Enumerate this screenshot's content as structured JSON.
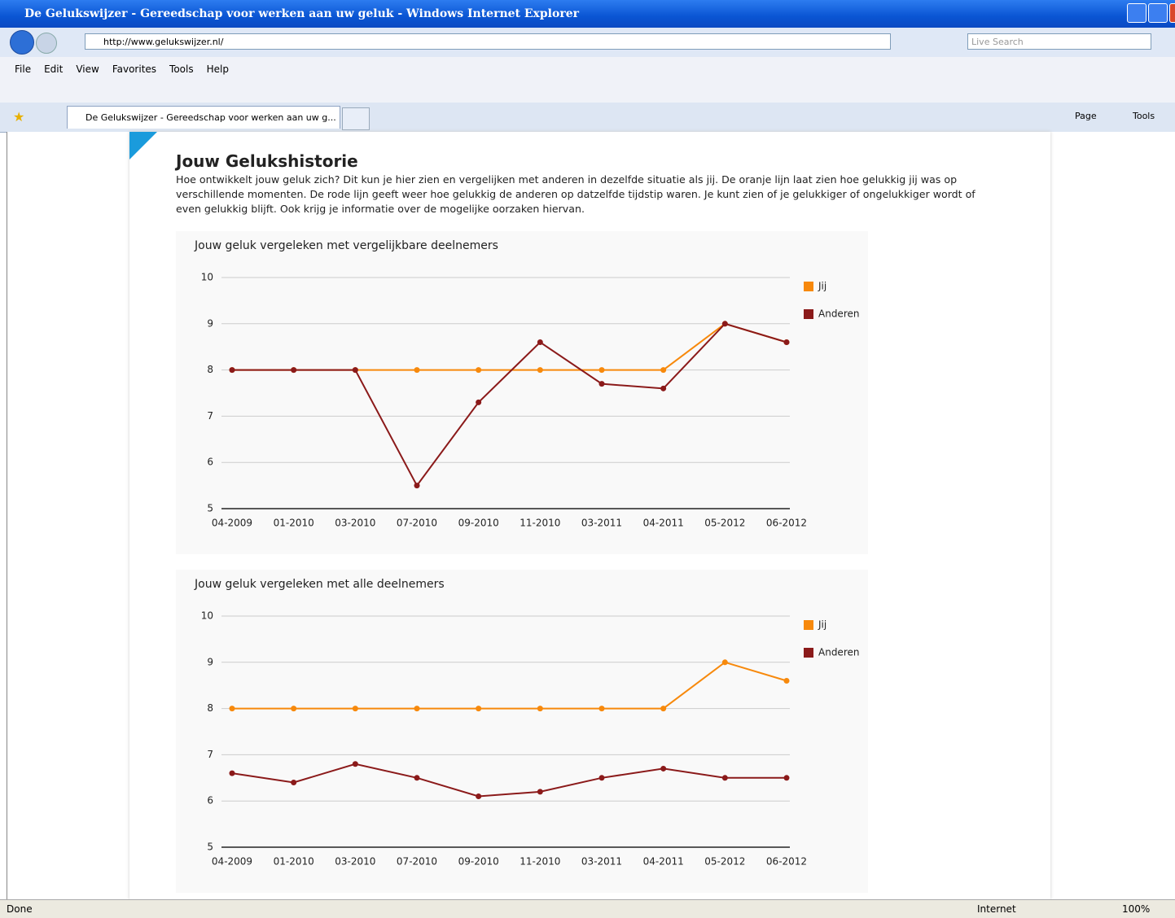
{
  "window": {
    "title": "De Gelukswijzer - Gereedschap voor werken aan uw geluk - Windows Internet Explorer",
    "url": "http://www.gelukswijzer.nl/",
    "search": "Live Search",
    "menu": [
      "File",
      "Edit",
      "View",
      "Favorites",
      "Tools",
      "Help"
    ],
    "tab": "De Gelukswijzer - Gereedschap voor werken aan uw g...",
    "toolbar": [
      "Page",
      "Tools"
    ],
    "status": {
      "text": "Done",
      "zone": "Internet",
      "zoom": "100%"
    }
  },
  "page": {
    "heading": "Jouw Gelukshistorie",
    "intro": "Hoe ontwikkelt jouw geluk zich? Dit kun je hier zien en vergelijken met anderen in dezelfde situatie als jij. De oranje lijn laat zien hoe gelukkig jij was op verschillende momenten. De rode lijn geeft weer hoe gelukkig de anderen op datzelfde tijdstip waren. Je kunt zien of je gelukkiger of ongelukkiger wordt of even gelukkig blijft. Ook krijg je informatie over de mogelijke oorzaken hiervan."
  },
  "chart_data": [
    {
      "type": "line",
      "title": "Jouw geluk vergeleken met vergelijkbare deelnemers",
      "categories": [
        "04-2009",
        "01-2010",
        "03-2010",
        "07-2010",
        "09-2010",
        "11-2010",
        "03-2011",
        "04-2011",
        "05-2012",
        "06-2012"
      ],
      "series": [
        {
          "name": "Jij",
          "color": "#f7890c",
          "values": [
            8,
            8,
            8,
            8,
            8,
            8,
            8,
            8,
            9,
            8.6
          ]
        },
        {
          "name": "Anderen",
          "color": "#8b1a1a",
          "values": [
            8,
            8,
            8,
            5.5,
            7.3,
            8.6,
            7.7,
            7.6,
            9,
            8.6
          ]
        }
      ],
      "ylim": [
        5,
        10
      ],
      "yticks": [
        5,
        6,
        7,
        8,
        9,
        10
      ],
      "grid": true,
      "legend": "right"
    },
    {
      "type": "line",
      "title": "Jouw geluk vergeleken met alle deelnemers",
      "categories": [
        "04-2009",
        "01-2010",
        "03-2010",
        "07-2010",
        "09-2010",
        "11-2010",
        "03-2011",
        "04-2011",
        "05-2012",
        "06-2012"
      ],
      "series": [
        {
          "name": "Jij",
          "color": "#f7890c",
          "values": [
            8,
            8,
            8,
            8,
            8,
            8,
            8,
            8,
            9,
            8.6
          ]
        },
        {
          "name": "Anderen",
          "color": "#8b1a1a",
          "values": [
            6.6,
            6.4,
            6.8,
            6.5,
            6.1,
            6.2,
            6.5,
            6.7,
            6.5,
            6.5
          ]
        }
      ],
      "ylim": [
        5,
        10
      ],
      "yticks": [
        5,
        6,
        7,
        8,
        9,
        10
      ],
      "grid": true,
      "legend": "right"
    }
  ]
}
